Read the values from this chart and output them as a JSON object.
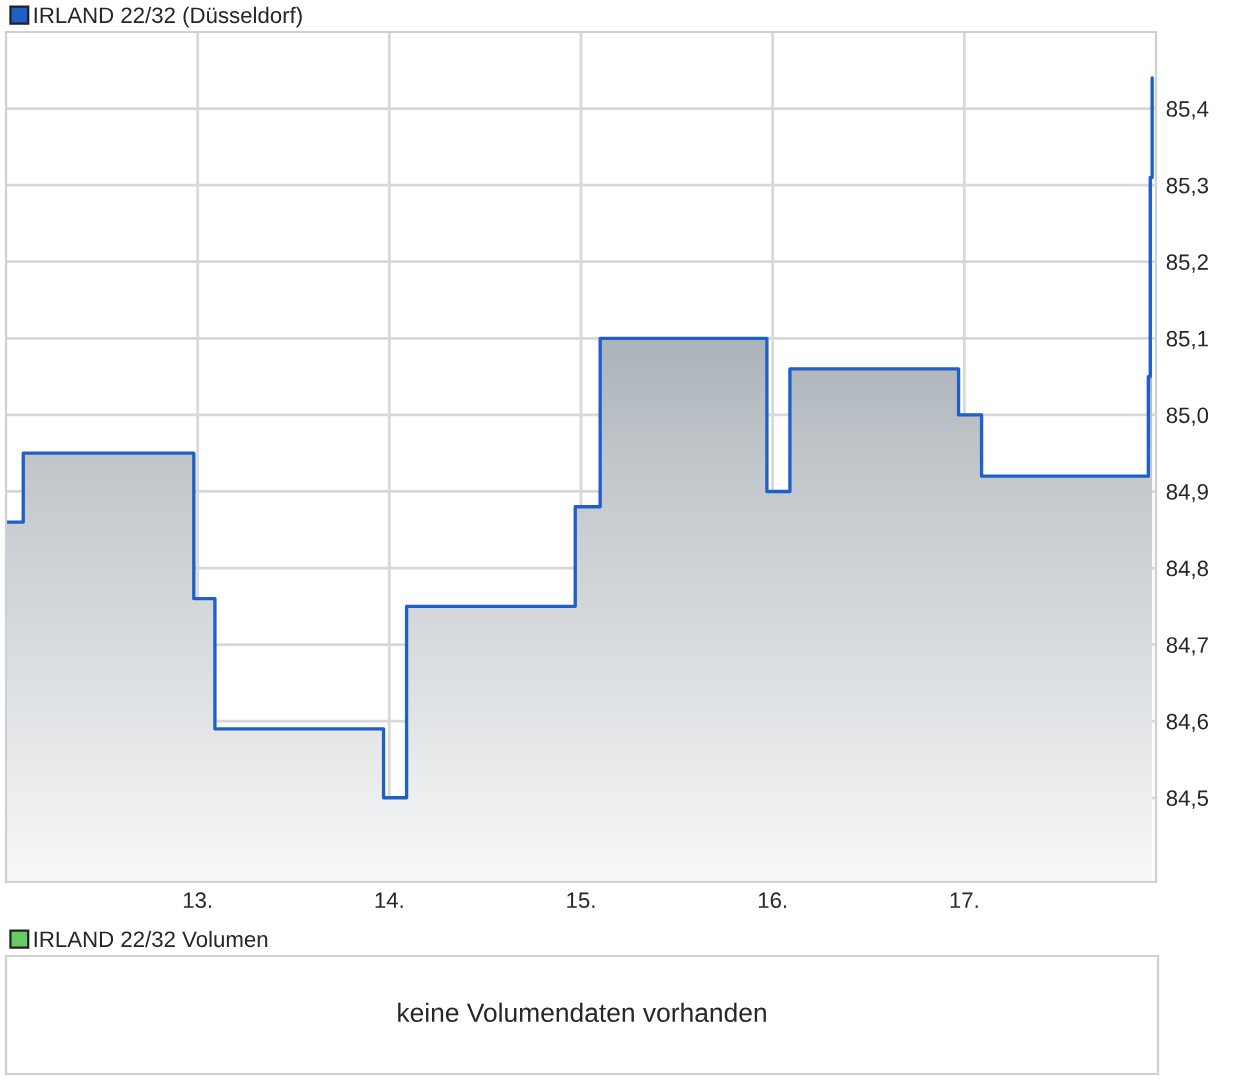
{
  "chart_data": [
    {
      "type": "step",
      "legend": "top left",
      "grid": true,
      "line_style": "solid",
      "marker": "none",
      "x": [
        12.0,
        12.09,
        12.98,
        13.09,
        13.97,
        14.09,
        14.97,
        15.1,
        15.97,
        16.09,
        16.97,
        17.09,
        17.96,
        17.97,
        17.98
      ],
      "series": [
        {
          "name": "IRLAND 22/32 (Düsseldorf)",
          "color": "#1f5fc8",
          "values": [
            84.86,
            84.95,
            84.76,
            84.59,
            84.5,
            84.75,
            84.88,
            85.1,
            84.9,
            85.06,
            85.0,
            84.92,
            85.05,
            85.31,
            85.44
          ]
        }
      ],
      "xlim": [
        12.0,
        18.0
      ],
      "xticks": [
        {
          "value": 13,
          "label": "13."
        },
        {
          "value": 14,
          "label": "14."
        },
        {
          "value": 15,
          "label": "15."
        },
        {
          "value": 16,
          "label": "16."
        },
        {
          "value": 17,
          "label": "17."
        }
      ],
      "ylim": [
        84.39,
        85.5
      ],
      "yticks": [
        {
          "value": 84.5,
          "label": "84,5"
        },
        {
          "value": 84.6,
          "label": "84,6"
        },
        {
          "value": 84.7,
          "label": "84,7"
        },
        {
          "value": 84.8,
          "label": "84,8"
        },
        {
          "value": 84.9,
          "label": "84,9"
        },
        {
          "value": 85.0,
          "label": "85,0"
        },
        {
          "value": 85.1,
          "label": "85,1"
        },
        {
          "value": 85.2,
          "label": "85,2"
        },
        {
          "value": 85.3,
          "label": "85,3"
        },
        {
          "value": 85.4,
          "label": "85,4"
        }
      ]
    },
    {
      "type": "other",
      "legend": "top left",
      "series": [
        {
          "name": "IRLAND 22/32 Volumen",
          "color": "#66cc66"
        }
      ],
      "annotations": [
        "keine Volumendaten vorhanden"
      ]
    }
  ]
}
